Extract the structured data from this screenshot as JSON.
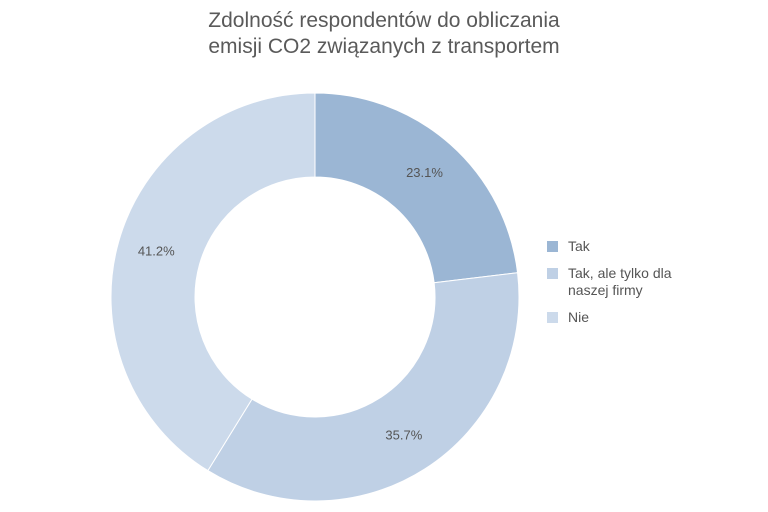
{
  "chart_data": {
    "type": "pie",
    "variant": "donut",
    "title_lines": [
      "Zdolność respondentów do obliczania",
      "emisji CO2 związanych z transportem"
    ],
    "categories": [
      "Tak",
      "Tak, ale tylko dla naszej firmy",
      "Nie"
    ],
    "values": [
      23.1,
      35.7,
      41.2
    ],
    "value_labels": [
      "23.1%",
      "35.7%",
      "41.2%"
    ],
    "colors": [
      "#9bb6d4",
      "#bfd0e5",
      "#ccdaeb"
    ],
    "legend_position": "right",
    "start_angle": "top",
    "direction": "clockwise"
  }
}
